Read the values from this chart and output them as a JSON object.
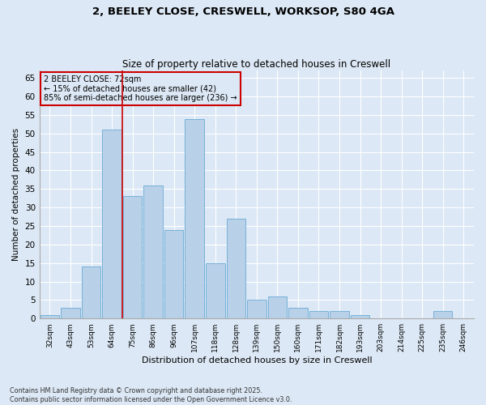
{
  "title1": "2, BEELEY CLOSE, CRESWELL, WORKSOP, S80 4GA",
  "title2": "Size of property relative to detached houses in Creswell",
  "xlabel": "Distribution of detached houses by size in Creswell",
  "ylabel": "Number of detached properties",
  "categories": [
    "32sqm",
    "43sqm",
    "53sqm",
    "64sqm",
    "75sqm",
    "86sqm",
    "96sqm",
    "107sqm",
    "118sqm",
    "128sqm",
    "139sqm",
    "150sqm",
    "160sqm",
    "171sqm",
    "182sqm",
    "193sqm",
    "203sqm",
    "214sqm",
    "225sqm",
    "235sqm",
    "246sqm"
  ],
  "values": [
    1,
    3,
    14,
    51,
    33,
    36,
    24,
    54,
    15,
    27,
    5,
    6,
    3,
    2,
    2,
    1,
    0,
    0,
    0,
    2,
    0
  ],
  "bar_color": "#b8d0e8",
  "bar_edge_color": "#6aaad4",
  "background_color": "#dce8f5",
  "grid_color": "#ffffff",
  "vline_color": "#cc0000",
  "vline_x_index": 3.5,
  "annotation_text": "2 BEELEY CLOSE: 72sqm\n← 15% of detached houses are smaller (42)\n85% of semi-detached houses are larger (236) →",
  "annotation_box_color": "#cc0000",
  "footer": "Contains HM Land Registry data © Crown copyright and database right 2025.\nContains public sector information licensed under the Open Government Licence v3.0.",
  "ylim": [
    0,
    67
  ],
  "yticks": [
    0,
    5,
    10,
    15,
    20,
    25,
    30,
    35,
    40,
    45,
    50,
    55,
    60,
    65
  ]
}
